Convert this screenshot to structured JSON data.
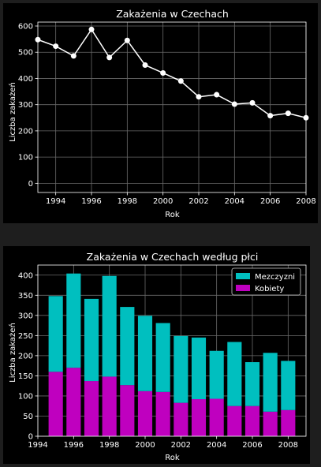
{
  "chart_data": [
    {
      "type": "line",
      "title": "Zakażenia w Czechach",
      "xlabel": "Rok",
      "ylabel": "Liczba zakażeń",
      "x": [
        1993,
        1994,
        1995,
        1996,
        1997,
        1998,
        1999,
        2000,
        2001,
        2002,
        2003,
        2004,
        2005,
        2006,
        2007,
        2008
      ],
      "y": [
        548,
        523,
        486,
        587,
        480,
        545,
        451,
        421,
        390,
        330,
        338,
        302,
        307,
        258,
        267,
        250
      ],
      "xlim": [
        1993,
        2008
      ],
      "ylim": [
        -35,
        615
      ],
      "xticks": [
        1994,
        1996,
        1998,
        2000,
        2002,
        2004,
        2006,
        2008
      ],
      "yticks": [
        0,
        100,
        200,
        300,
        400,
        500,
        600
      ],
      "grid": true,
      "colors": {
        "line": "#ffffff",
        "marker": "#ffffff"
      }
    },
    {
      "type": "bar",
      "stacked": true,
      "title": "Zakażenia w Czechach według płci",
      "xlabel": "Rok",
      "ylabel": "Liczba zakażeń",
      "categories": [
        1995,
        1996,
        1997,
        1998,
        1999,
        2000,
        2001,
        2002,
        2003,
        2004,
        2005,
        2006,
        2007,
        2008
      ],
      "series": [
        {
          "name": "Kobiety",
          "color": "#bf00bf",
          "values": [
            160,
            170,
            137,
            148,
            127,
            112,
            110,
            83,
            92,
            93,
            75,
            75,
            61,
            65
          ]
        },
        {
          "name": "Mezczyzni",
          "color": "#00bfbf",
          "values": [
            188,
            234,
            204,
            250,
            194,
            187,
            171,
            166,
            153,
            119,
            159,
            109,
            146,
            122
          ]
        }
      ],
      "xlim": [
        1994,
        2009
      ],
      "ylim": [
        0,
        425
      ],
      "xticks": [
        1994,
        1996,
        1998,
        2000,
        2002,
        2004,
        2006,
        2008
      ],
      "yticks": [
        0,
        50,
        100,
        150,
        200,
        250,
        300,
        350,
        400
      ],
      "grid": true,
      "legend": {
        "placement": "top-right",
        "order": [
          "Mezczyzni",
          "Kobiety"
        ]
      }
    }
  ]
}
